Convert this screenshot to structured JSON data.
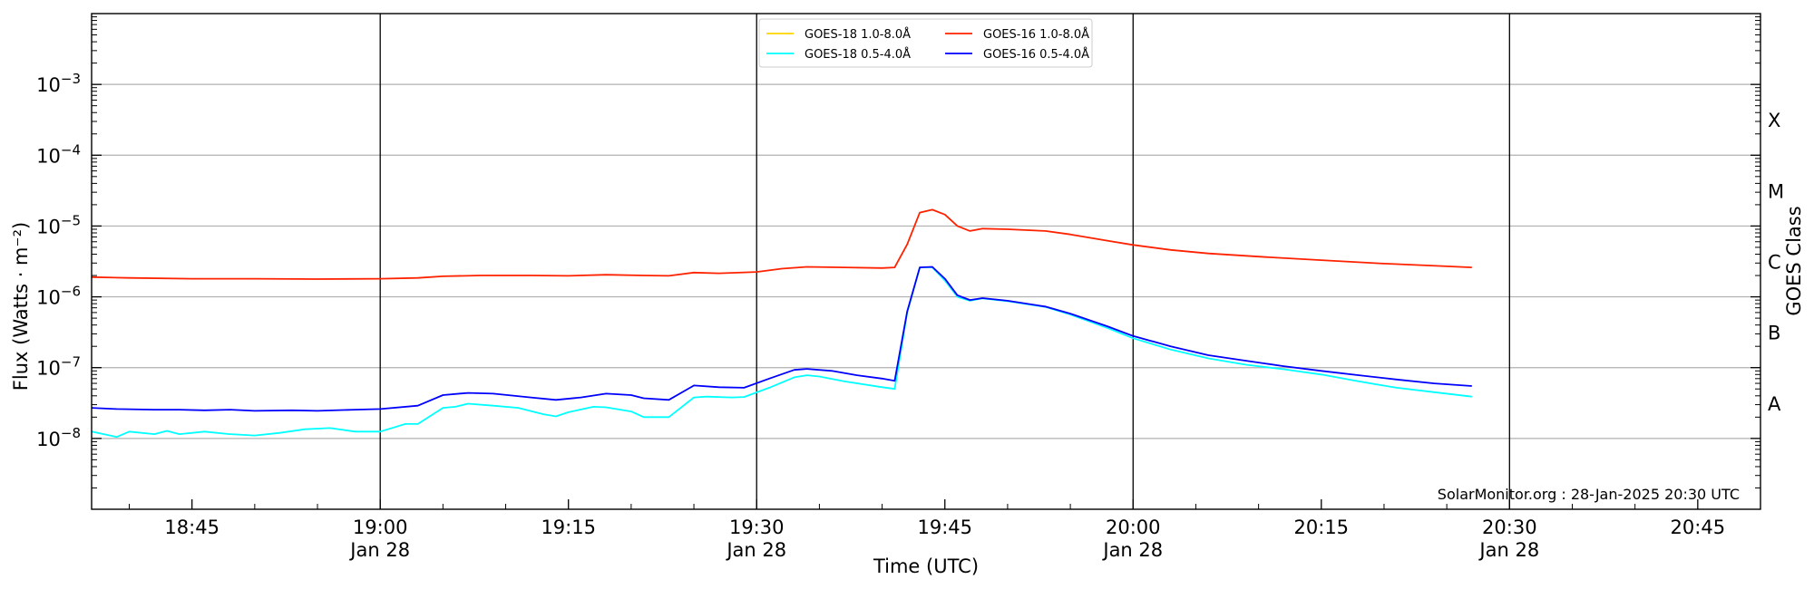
{
  "chart_data": {
    "type": "line",
    "xlabel": "Time (UTC)",
    "ylabel": "Flux (Watts · m⁻²)",
    "ylabel_right": "GOES Class",
    "yscale": "log",
    "ylim": [
      1e-09,
      0.01
    ],
    "xlim": [
      "18:37",
      "20:50"
    ],
    "credit": "SolarMonitor.org : 28-Jan-2025 20:30 UTC",
    "grid": "horizontal at decades; vertical lines every 30 min",
    "legend_position": "top-center",
    "legend": [
      {
        "label": "GOES-18 1.0-8.0Å",
        "color": "#ffd500"
      },
      {
        "label": "GOES-18 0.5-4.0Å",
        "color": "#00ffff"
      },
      {
        "label": "GOES-16 1.0-8.0Å",
        "color": "#ff2200"
      },
      {
        "label": "GOES-16 0.5-4.0Å",
        "color": "#0000ff"
      }
    ],
    "x_ticks": [
      {
        "time": "18:45",
        "label": "18:45",
        "sublabel": ""
      },
      {
        "time": "19:00",
        "label": "19:00",
        "sublabel": "Jan 28"
      },
      {
        "time": "19:15",
        "label": "19:15",
        "sublabel": ""
      },
      {
        "time": "19:30",
        "label": "19:30",
        "sublabel": "Jan 28"
      },
      {
        "time": "19:45",
        "label": "19:45",
        "sublabel": ""
      },
      {
        "time": "20:00",
        "label": "20:00",
        "sublabel": "Jan 28"
      },
      {
        "time": "20:15",
        "label": "20:15",
        "sublabel": ""
      },
      {
        "time": "20:30",
        "label": "20:30",
        "sublabel": "Jan 28"
      },
      {
        "time": "20:45",
        "label": "20:45",
        "sublabel": ""
      }
    ],
    "vlines": [
      "19:00",
      "19:30",
      "20:00",
      "20:30"
    ],
    "y_ticks": [
      {
        "value": 1e-08,
        "base": "10",
        "exp": "−8"
      },
      {
        "value": 1e-07,
        "base": "10",
        "exp": "−7"
      },
      {
        "value": 1e-06,
        "base": "10",
        "exp": "−6"
      },
      {
        "value": 1e-05,
        "base": "10",
        "exp": "−5"
      },
      {
        "value": 0.0001,
        "base": "10",
        "exp": "−4"
      },
      {
        "value": 0.001,
        "base": "10",
        "exp": "−3"
      }
    ],
    "goes_classes": [
      {
        "label": "A",
        "value": 1e-08
      },
      {
        "label": "B",
        "value": 1e-07
      },
      {
        "label": "C",
        "value": 1e-06
      },
      {
        "label": "M",
        "value": 1e-05
      },
      {
        "label": "X",
        "value": 0.0001
      }
    ],
    "series": [
      {
        "name": "GOES-16 1.0-8.0Å",
        "color": "#ff2200",
        "points": [
          [
            "18:37",
            1.9e-06
          ],
          [
            "18:40",
            1.85e-06
          ],
          [
            "18:45",
            1.8e-06
          ],
          [
            "18:50",
            1.8e-06
          ],
          [
            "18:55",
            1.78e-06
          ],
          [
            "19:00",
            1.8e-06
          ],
          [
            "19:03",
            1.85e-06
          ],
          [
            "19:05",
            1.95e-06
          ],
          [
            "19:08",
            2e-06
          ],
          [
            "19:12",
            2e-06
          ],
          [
            "19:15",
            1.98e-06
          ],
          [
            "19:18",
            2.05e-06
          ],
          [
            "19:21",
            2e-06
          ],
          [
            "19:23",
            1.98e-06
          ],
          [
            "19:25",
            2.2e-06
          ],
          [
            "19:27",
            2.15e-06
          ],
          [
            "19:30",
            2.25e-06
          ],
          [
            "19:32",
            2.5e-06
          ],
          [
            "19:34",
            2.65e-06
          ],
          [
            "19:37",
            2.6e-06
          ],
          [
            "19:40",
            2.55e-06
          ],
          [
            "19:41",
            2.6e-06
          ],
          [
            "19:42",
            5.5e-06
          ],
          [
            "19:43",
            1.55e-05
          ],
          [
            "19:44",
            1.7e-05
          ],
          [
            "19:45",
            1.45e-05
          ],
          [
            "19:46",
            1e-05
          ],
          [
            "19:47",
            8.5e-06
          ],
          [
            "19:48",
            9.2e-06
          ],
          [
            "19:50",
            9e-06
          ],
          [
            "19:53",
            8.5e-06
          ],
          [
            "19:55",
            7.6e-06
          ],
          [
            "19:58",
            6.2e-06
          ],
          [
            "20:00",
            5.4e-06
          ],
          [
            "20:03",
            4.6e-06
          ],
          [
            "20:06",
            4.1e-06
          ],
          [
            "20:10",
            3.7e-06
          ],
          [
            "20:15",
            3.3e-06
          ],
          [
            "20:20",
            2.95e-06
          ],
          [
            "20:25",
            2.7e-06
          ],
          [
            "20:27",
            2.6e-06
          ]
        ]
      },
      {
        "name": "GOES-18 0.5-4.0Å",
        "color": "#00ffff",
        "points": [
          [
            "18:37",
            1.25e-08
          ],
          [
            "18:39",
            1.05e-08
          ],
          [
            "18:40",
            1.25e-08
          ],
          [
            "18:42",
            1.15e-08
          ],
          [
            "18:43",
            1.28e-08
          ],
          [
            "18:44",
            1.15e-08
          ],
          [
            "18:46",
            1.25e-08
          ],
          [
            "18:48",
            1.15e-08
          ],
          [
            "18:50",
            1.1e-08
          ],
          [
            "18:52",
            1.2e-08
          ],
          [
            "18:54",
            1.35e-08
          ],
          [
            "18:56",
            1.4e-08
          ],
          [
            "18:58",
            1.25e-08
          ],
          [
            "19:00",
            1.25e-08
          ],
          [
            "19:02",
            1.6e-08
          ],
          [
            "19:03",
            1.6e-08
          ],
          [
            "19:05",
            2.7e-08
          ],
          [
            "19:06",
            2.8e-08
          ],
          [
            "19:07",
            3.1e-08
          ],
          [
            "19:09",
            2.9e-08
          ],
          [
            "19:11",
            2.7e-08
          ],
          [
            "19:13",
            2.2e-08
          ],
          [
            "19:14",
            2.05e-08
          ],
          [
            "19:15",
            2.35e-08
          ],
          [
            "19:17",
            2.8e-08
          ],
          [
            "19:18",
            2.75e-08
          ],
          [
            "19:20",
            2.4e-08
          ],
          [
            "19:21",
            2e-08
          ],
          [
            "19:23",
            2e-08
          ],
          [
            "19:25",
            3.8e-08
          ],
          [
            "19:26",
            3.9e-08
          ],
          [
            "19:28",
            3.8e-08
          ],
          [
            "19:29",
            3.85e-08
          ],
          [
            "19:31",
            5.2e-08
          ],
          [
            "19:33",
            7.3e-08
          ],
          [
            "19:34",
            7.8e-08
          ],
          [
            "19:35",
            7.5e-08
          ],
          [
            "19:37",
            6.4e-08
          ],
          [
            "19:40",
            5.3e-08
          ],
          [
            "19:41",
            5e-08
          ],
          [
            "19:42",
            6e-07
          ],
          [
            "19:43",
            2.6e-06
          ],
          [
            "19:44",
            2.6e-06
          ],
          [
            "19:45",
            1.7e-06
          ],
          [
            "19:46",
            1e-06
          ],
          [
            "19:47",
            8.8e-07
          ],
          [
            "19:48",
            9.5e-07
          ],
          [
            "19:50",
            8.7e-07
          ],
          [
            "19:53",
            7.2e-07
          ],
          [
            "19:55",
            5.6e-07
          ],
          [
            "19:58",
            3.6e-07
          ],
          [
            "20:00",
            2.6e-07
          ],
          [
            "20:03",
            1.8e-07
          ],
          [
            "20:06",
            1.35e-07
          ],
          [
            "20:09",
            1.1e-07
          ],
          [
            "20:12",
            9.5e-08
          ],
          [
            "20:15",
            8e-08
          ],
          [
            "20:18",
            6.4e-08
          ],
          [
            "20:21",
            5.2e-08
          ],
          [
            "20:24",
            4.5e-08
          ],
          [
            "20:27",
            3.9e-08
          ]
        ]
      },
      {
        "name": "GOES-16 0.5-4.0Å",
        "color": "#0000ff",
        "points": [
          [
            "18:37",
            2.7e-08
          ],
          [
            "18:39",
            2.6e-08
          ],
          [
            "18:42",
            2.55e-08
          ],
          [
            "18:44",
            2.55e-08
          ],
          [
            "18:46",
            2.5e-08
          ],
          [
            "18:48",
            2.55e-08
          ],
          [
            "18:50",
            2.45e-08
          ],
          [
            "18:53",
            2.5e-08
          ],
          [
            "18:55",
            2.45e-08
          ],
          [
            "18:58",
            2.55e-08
          ],
          [
            "19:00",
            2.6e-08
          ],
          [
            "19:03",
            2.9e-08
          ],
          [
            "19:05",
            4.1e-08
          ],
          [
            "19:07",
            4.4e-08
          ],
          [
            "19:09",
            4.3e-08
          ],
          [
            "19:12",
            3.8e-08
          ],
          [
            "19:14",
            3.5e-08
          ],
          [
            "19:16",
            3.8e-08
          ],
          [
            "19:18",
            4.3e-08
          ],
          [
            "19:20",
            4.1e-08
          ],
          [
            "19:21",
            3.7e-08
          ],
          [
            "19:23",
            3.5e-08
          ],
          [
            "19:25",
            5.6e-08
          ],
          [
            "19:27",
            5.3e-08
          ],
          [
            "19:29",
            5.2e-08
          ],
          [
            "19:31",
            7e-08
          ],
          [
            "19:33",
            9.3e-08
          ],
          [
            "19:34",
            9.6e-08
          ],
          [
            "19:36",
            9e-08
          ],
          [
            "19:38",
            7.8e-08
          ],
          [
            "19:40",
            7e-08
          ],
          [
            "19:41",
            6.5e-08
          ],
          [
            "19:42",
            6.2e-07
          ],
          [
            "19:43",
            2.6e-06
          ],
          [
            "19:44",
            2.65e-06
          ],
          [
            "19:45",
            1.8e-06
          ],
          [
            "19:46",
            1.05e-06
          ],
          [
            "19:47",
            9e-07
          ],
          [
            "19:48",
            9.6e-07
          ],
          [
            "19:50",
            8.8e-07
          ],
          [
            "19:53",
            7.3e-07
          ],
          [
            "19:55",
            5.8e-07
          ],
          [
            "19:58",
            3.8e-07
          ],
          [
            "20:00",
            2.8e-07
          ],
          [
            "20:03",
            2e-07
          ],
          [
            "20:06",
            1.5e-07
          ],
          [
            "20:09",
            1.25e-07
          ],
          [
            "20:12",
            1.05e-07
          ],
          [
            "20:15",
            9e-08
          ],
          [
            "20:18",
            7.8e-08
          ],
          [
            "20:21",
            6.8e-08
          ],
          [
            "20:24",
            6e-08
          ],
          [
            "20:27",
            5.5e-08
          ]
        ]
      }
    ]
  }
}
